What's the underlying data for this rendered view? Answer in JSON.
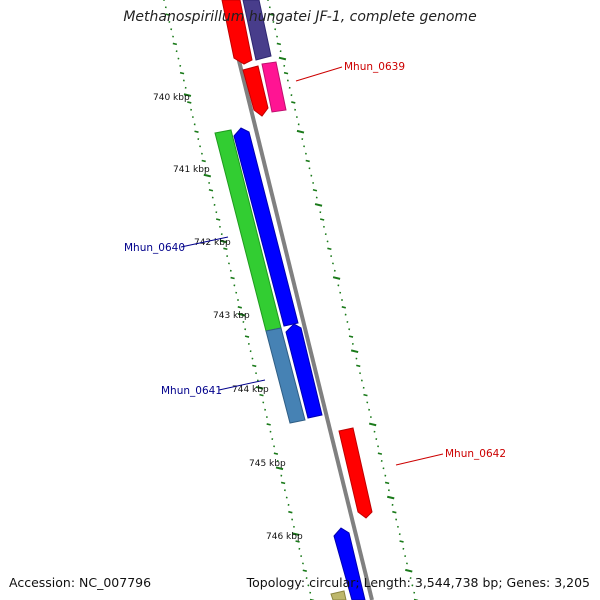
{
  "title": "Methanospirillum hungatei JF-1, complete genome",
  "footer": {
    "accession": "Accession: NC_007796",
    "summary": "Topology: circular; Length: 3,544,738 bp; Genes: 3,205"
  },
  "tick_labels": [
    "740 kbp",
    "741 kbp",
    "742 kbp",
    "743 kbp",
    "744 kbp",
    "745 kbp",
    "746 kbp"
  ],
  "gene_labels": [
    {
      "text": "Mhun_0639",
      "color": "#cc0000"
    },
    {
      "text": "Mhun_0640",
      "color": "#00008b"
    },
    {
      "text": "Mhun_0641",
      "color": "#00008b"
    },
    {
      "text": "Mhun_0642",
      "color": "#cc0000"
    }
  ],
  "colors": {
    "backbone": "#808080",
    "tick": "#1a7a1a",
    "red": "#ff0000",
    "pink": "#ff1493",
    "slate": "#483d8b",
    "green": "#32cd32",
    "blue": "#0000ff",
    "steel": "#4682b4",
    "khaki": "#bdb76b"
  }
}
